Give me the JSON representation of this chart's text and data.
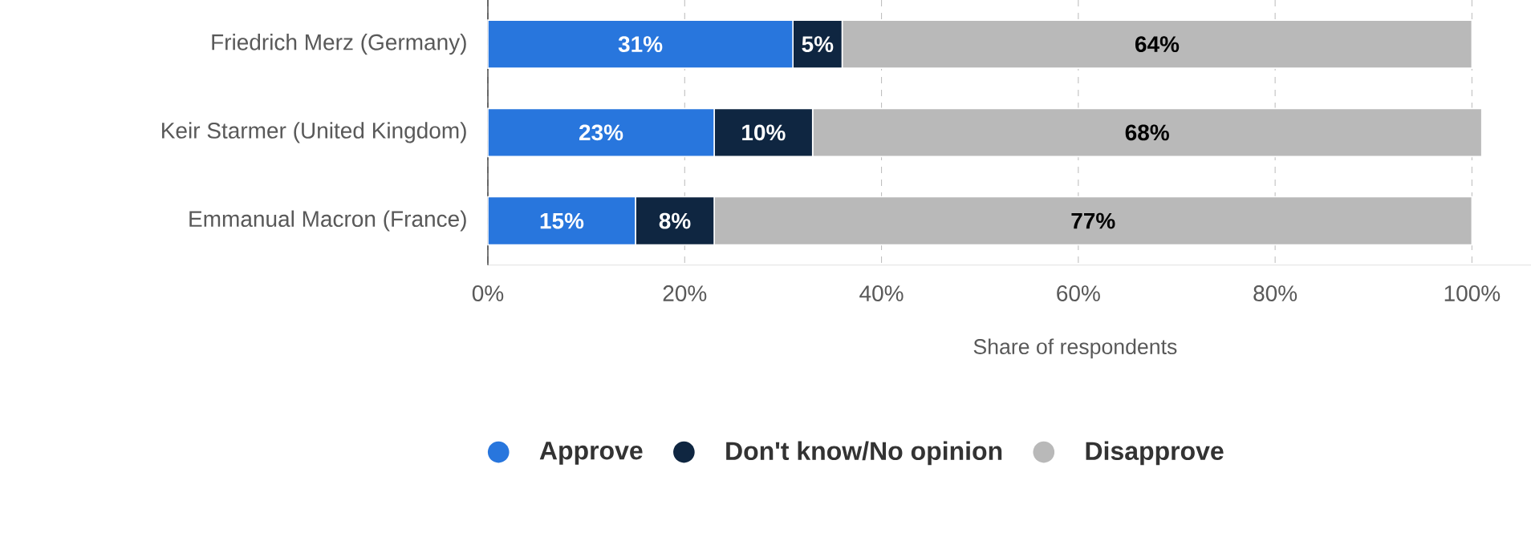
{
  "chart_data": {
    "type": "bar",
    "orientation": "horizontal",
    "stacked": true,
    "categories": [
      "Friedrich Merz (Germany)",
      "Keir Starmer (United Kingdom)",
      "Emmanual Macron (France)"
    ],
    "series": [
      {
        "name": "Approve",
        "color": "#2876dd",
        "values": [
          31,
          23,
          15
        ],
        "value_labels": [
          "31%",
          "23%",
          "15%"
        ]
      },
      {
        "name": "Don't know/No opinion",
        "color": "#0f2641",
        "values": [
          5,
          10,
          8
        ],
        "value_labels": [
          "5%",
          "10%",
          "8%"
        ]
      },
      {
        "name": "Disapprove",
        "color": "#b9b9b9",
        "values": [
          64,
          68,
          77
        ],
        "value_labels": [
          "64%",
          "68%",
          "77%"
        ]
      }
    ],
    "xlim": [
      0,
      106
    ],
    "xticks": [
      {
        "value": 0,
        "label": "0%"
      },
      {
        "value": 20,
        "label": "20%"
      },
      {
        "value": 40,
        "label": "40%"
      },
      {
        "value": 60,
        "label": "60%"
      },
      {
        "value": 80,
        "label": "80%"
      },
      {
        "value": 100,
        "label": "100%"
      }
    ],
    "xlabel": "Share of respondents",
    "grid": "x",
    "legend": "bottom"
  }
}
